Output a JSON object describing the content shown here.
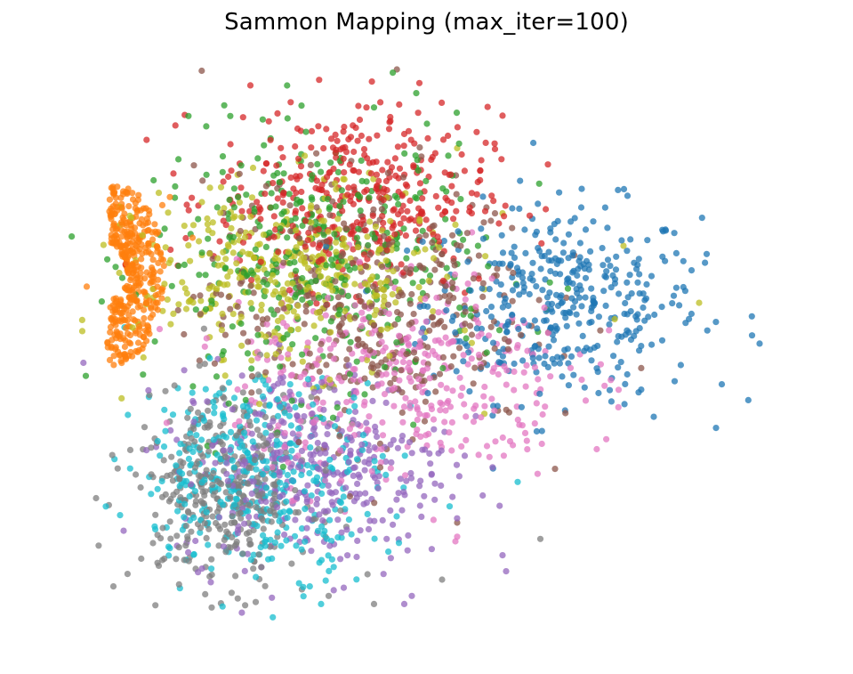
{
  "chart_data": {
    "type": "scatter",
    "title": "Sammon Mapping (max_iter=100)",
    "xlabel": "",
    "ylabel": "",
    "axes_visible": false,
    "grid": false,
    "legend": "none",
    "xlim": [
      0,
      10
    ],
    "ylim": [
      0,
      7
    ],
    "marker_opacity": 0.75,
    "colors": {
      "blue": "#1f77b4",
      "orange": "#ff7f0e",
      "green": "#2ca02c",
      "red": "#d62728",
      "purple": "#9467bd",
      "brown": "#8c564b",
      "pink": "#e377c2",
      "gray": "#7f7f7f",
      "olive": "#bcbd22",
      "cyan": "#17becf"
    },
    "series": [
      {
        "color": "#1f77b4",
        "values_summary": "cluster centered at (6.8, 4.1), spread right to x≈9.6",
        "center": [
          6.8,
          4.1
        ],
        "spread": [
          0.9,
          0.6
        ],
        "points": [
          [
            9.3,
            3.7
          ],
          [
            9.4,
            3.6
          ],
          [
            8.9,
            3.1
          ],
          [
            8.0,
            2.7
          ],
          [
            7.8,
            3.0
          ],
          [
            8.5,
            4.5
          ],
          [
            8.7,
            4.7
          ],
          [
            7.1,
            5.0
          ],
          [
            7.2,
            5.1
          ]
        ]
      },
      {
        "color": "#ff7f0e",
        "values_summary": "tight cluster at (1.0, 4.4)",
        "center": [
          1.0,
          4.4
        ],
        "spread": [
          0.35,
          0.5
        ],
        "points": [
          [
            1.6,
            5.4
          ],
          [
            1.5,
            5.3
          ],
          [
            0.5,
            4.3
          ],
          [
            1.9,
            4.9
          ]
        ]
      },
      {
        "color": "#2ca02c",
        "values_summary": "broad cluster at (3.6, 4.6)",
        "center": [
          3.6,
          4.6
        ],
        "spread": [
          1.1,
          0.8
        ],
        "points": [
          [
            3.4,
            6.2
          ],
          [
            2.3,
            5.9
          ],
          [
            5.0,
            6.3
          ],
          [
            4.3,
            6.5
          ]
        ]
      },
      {
        "color": "#d62728",
        "values_summary": "upper cluster at (4.0, 5.4)",
        "center": [
          4.0,
          5.4
        ],
        "spread": [
          0.9,
          0.55
        ],
        "points": [
          [
            6.0,
            6.4
          ],
          [
            6.6,
            5.8
          ],
          [
            4.9,
            6.8
          ],
          [
            4.2,
            6.5
          ]
        ]
      },
      {
        "color": "#9467bd",
        "values_summary": "lower cluster at (3.5, 2.1)",
        "center": [
          3.5,
          2.1
        ],
        "spread": [
          0.9,
          0.6
        ],
        "points": [
          [
            4.8,
            0.5
          ],
          [
            4.7,
            0.4
          ],
          [
            6.0,
            1.0
          ],
          [
            3.9,
            0.6
          ]
        ]
      },
      {
        "color": "#8c564b",
        "values_summary": "diffuse cluster at (4.2, 4.1)",
        "center": [
          4.2,
          4.1
        ],
        "spread": [
          1.1,
          0.8
        ],
        "points": [
          [
            5.4,
            1.4
          ],
          [
            5.6,
            5.3
          ],
          [
            5.9,
            5.2
          ]
        ]
      },
      {
        "color": "#e377c2",
        "values_summary": "cluster at (4.7, 3.2)",
        "center": [
          4.7,
          3.2
        ],
        "spread": [
          1.1,
          0.65
        ],
        "points": [
          [
            6.1,
            2.4
          ],
          [
            7.1,
            2.9
          ],
          [
            6.9,
            3.3
          ],
          [
            6.3,
            2.5
          ]
        ]
      },
      {
        "color": "#7f7f7f",
        "values_summary": "lower-left cluster at (2.3, 1.8)",
        "center": [
          2.3,
          1.8
        ],
        "spread": [
          0.6,
          0.6
        ],
        "points": [
          [
            6.5,
            1.2
          ],
          [
            3.7,
            0.5
          ],
          [
            4.3,
            0.4
          ],
          [
            5.2,
            0.7
          ]
        ]
      },
      {
        "color": "#bcbd22",
        "values_summary": "central cluster at (3.2, 4.4)",
        "center": [
          3.2,
          4.4
        ],
        "spread": [
          1.0,
          0.55
        ],
        "points": [
          [
            8.6,
            4.1
          ],
          [
            7.6,
            4.8
          ],
          [
            6.0,
            5.2
          ],
          [
            5.4,
            6.0
          ]
        ]
      },
      {
        "color": "#17becf",
        "values_summary": "lower cluster at (2.8, 2.0)",
        "center": [
          2.8,
          2.0
        ],
        "spread": [
          0.8,
          0.6
        ],
        "points": [
          [
            1.0,
            3.8
          ],
          [
            3.6,
            0.4
          ],
          [
            6.2,
            1.9
          ],
          [
            5.3,
            1.6
          ]
        ]
      }
    ]
  }
}
